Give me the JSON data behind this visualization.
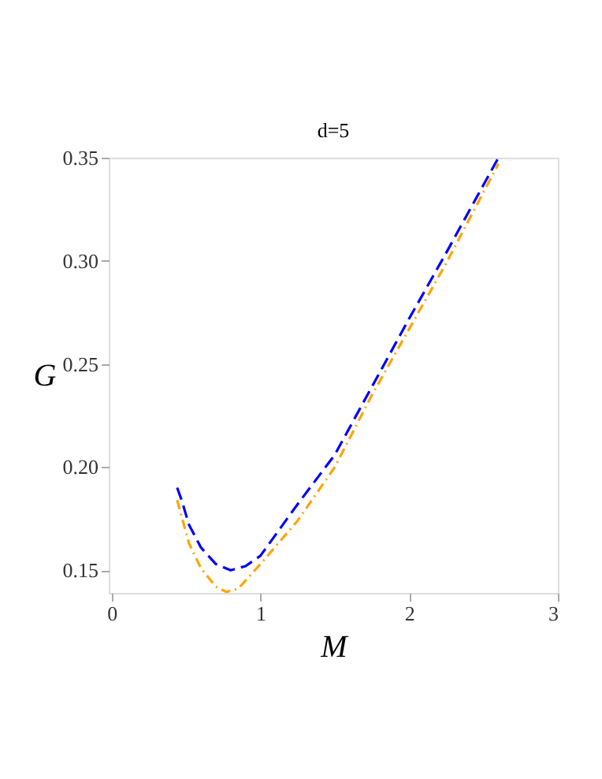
{
  "chart_data": {
    "type": "line",
    "title": "d=5",
    "xlabel": "M",
    "ylabel": "G",
    "xlim": [
      -0.02,
      3.0
    ],
    "xticks": [
      0,
      1,
      2,
      3
    ],
    "ylim": [
      0.139,
      0.35
    ],
    "yticks": [
      0.15,
      {
        "value": 0.2,
        "label": "0.20"
      },
      0.25,
      {
        "value": 0.3,
        "label": "0.30"
      },
      0.35
    ],
    "grid": false,
    "series": [
      {
        "color": "#0000ff",
        "line_style": "dashed",
        "x": [
          0.44,
          0.47,
          0.52,
          0.6,
          0.7,
          0.8,
          0.9,
          1.0,
          1.25,
          1.5,
          1.75,
          2.0,
          2.25,
          2.6
        ],
        "values": [
          0.19,
          0.184,
          0.172,
          0.161,
          0.153,
          0.15,
          0.152,
          0.157,
          0.182,
          0.206,
          0.239,
          0.272,
          0.304,
          0.35
        ]
      },
      {
        "color": "#ffa500",
        "line_style": "dotted",
        "x": [
          0.44,
          0.47,
          0.52,
          0.6,
          0.7,
          0.77,
          0.85,
          1.0,
          1.25,
          1.5,
          1.75,
          2.0,
          2.25,
          2.6
        ],
        "values": [
          0.184,
          0.176,
          0.163,
          0.151,
          0.142,
          0.1395,
          0.141,
          0.153,
          0.174,
          0.2,
          0.235,
          0.267,
          0.299,
          0.347
        ]
      }
    ]
  }
}
